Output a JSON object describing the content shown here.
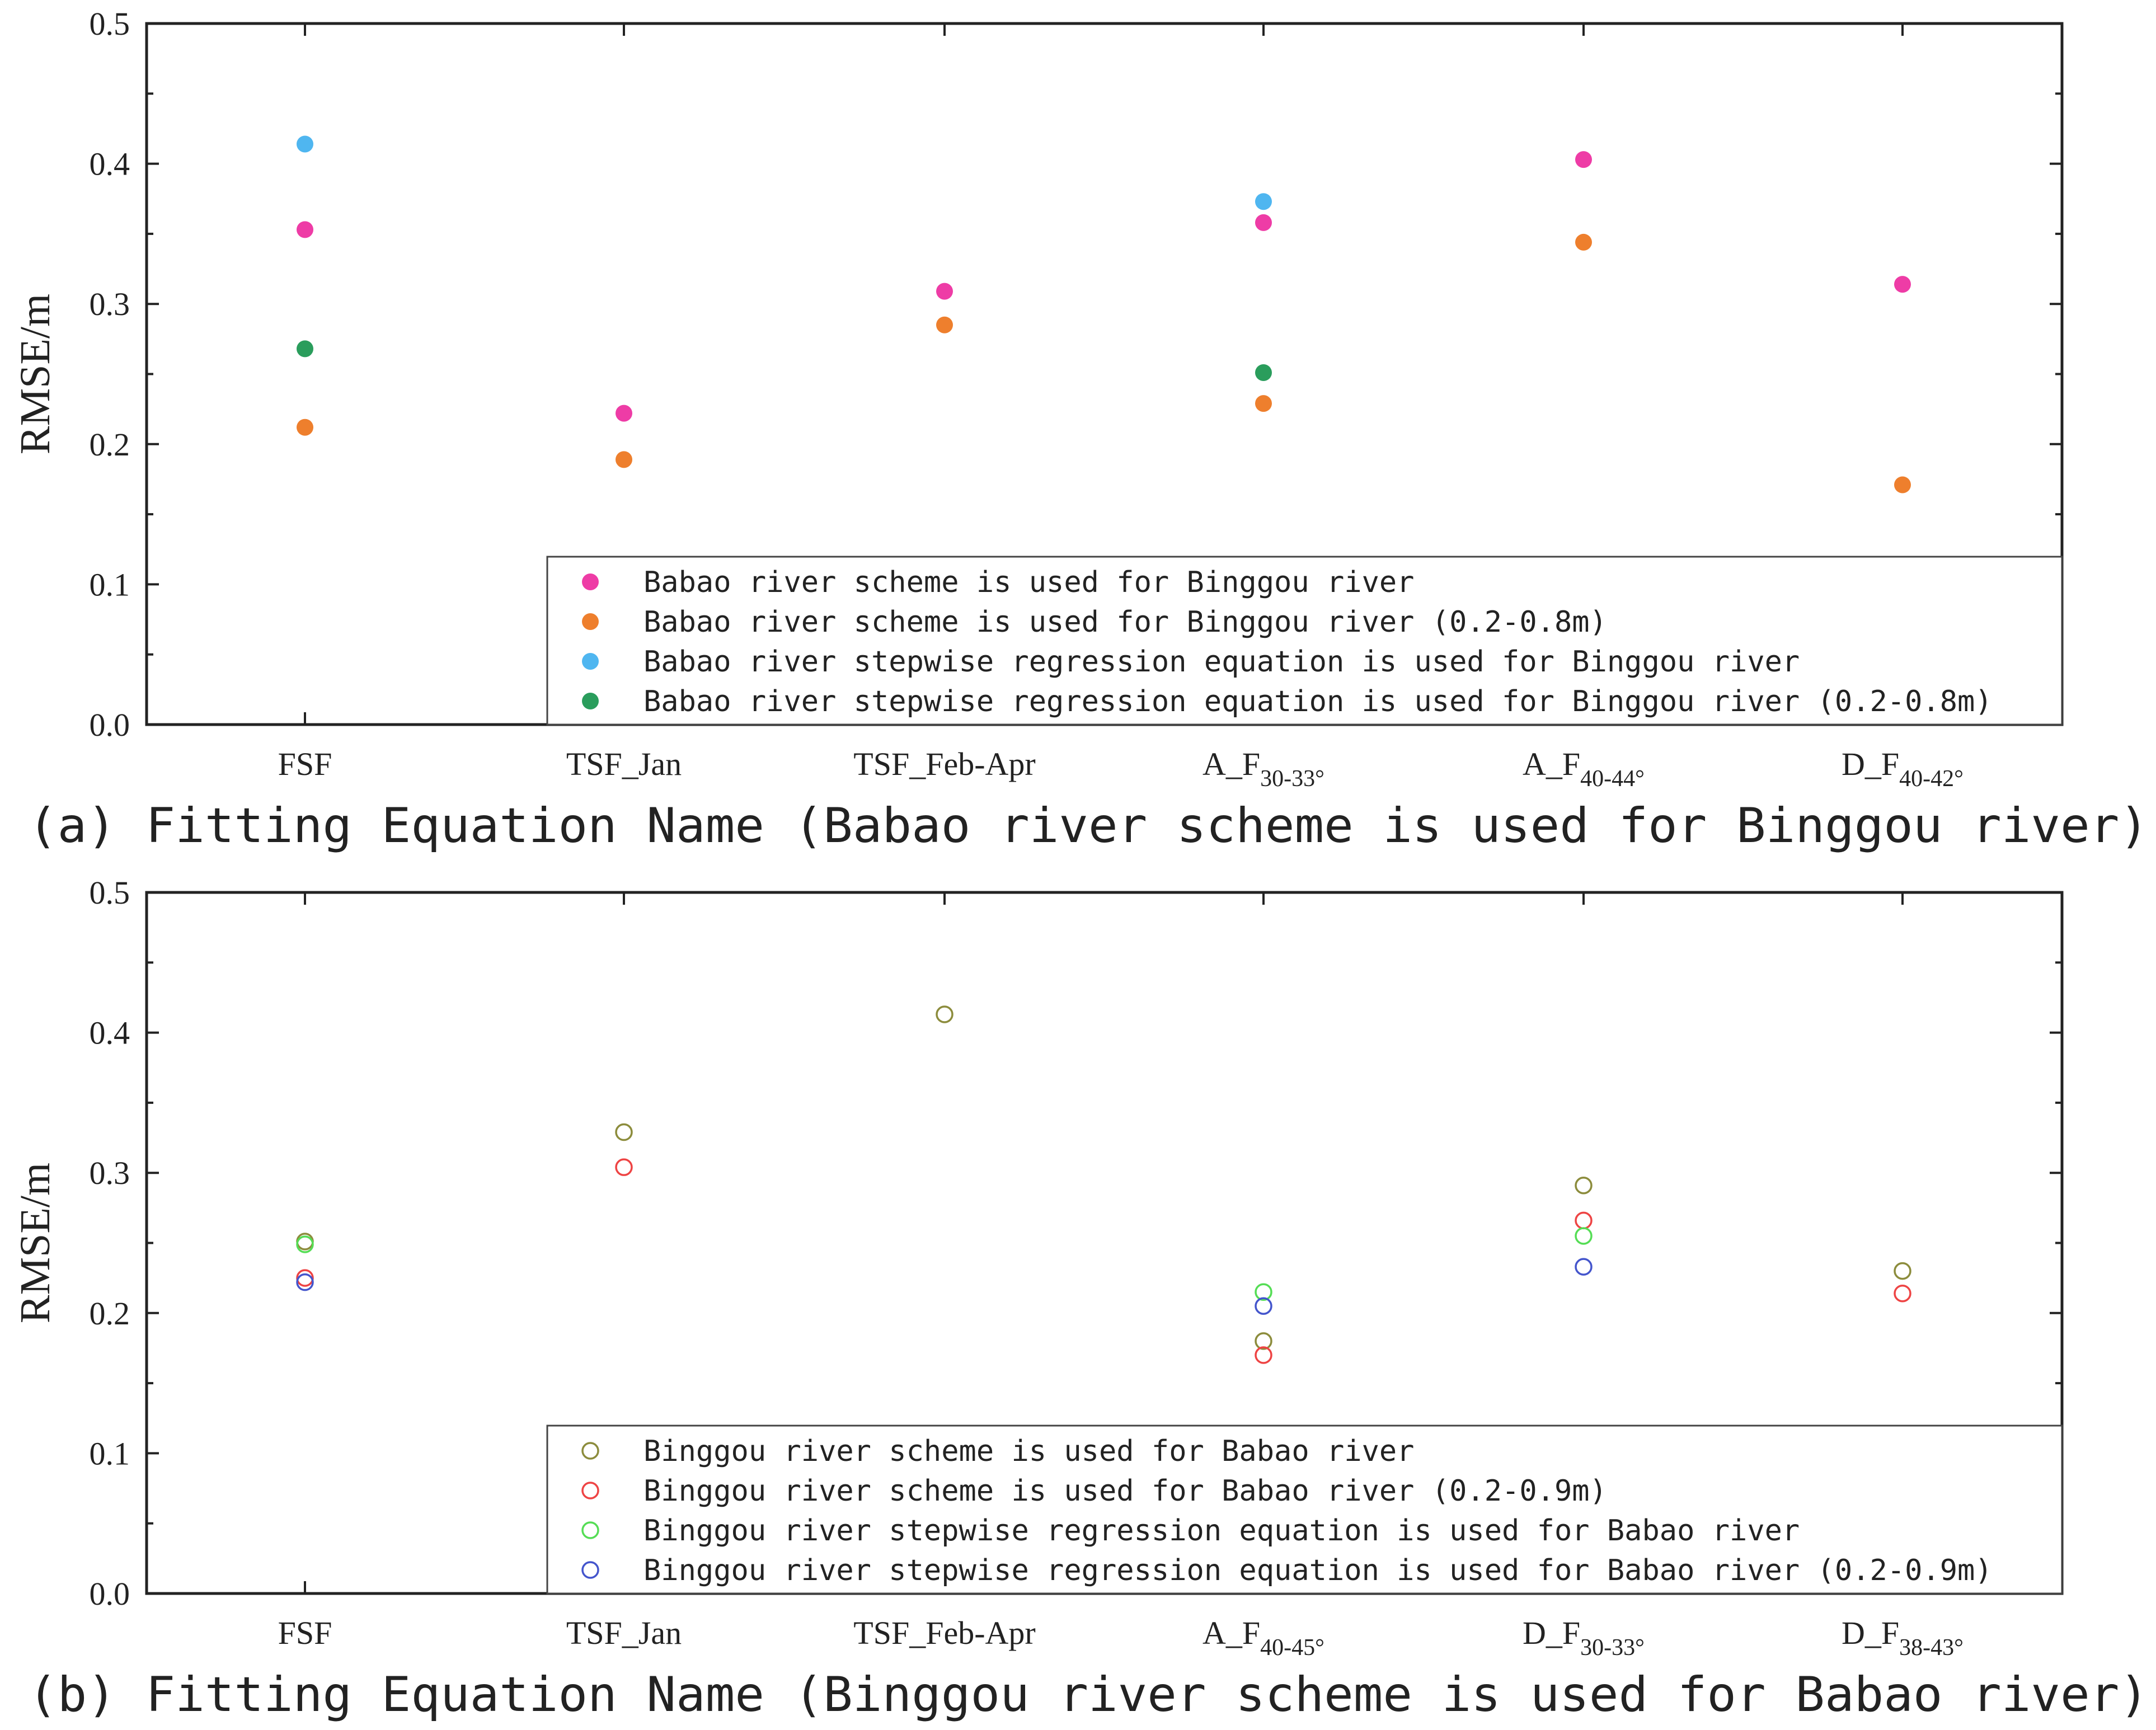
{
  "chart_data": [
    {
      "type": "scatter",
      "panel_label": "(a) Fitting Equation Name (Babao river scheme is used for Binggou river)",
      "ylabel": "RMSE/m",
      "ylim": [
        0,
        0.5
      ],
      "yticks": [
        "0.0",
        "0.1",
        "0.2",
        "0.3",
        "0.4",
        "0.5"
      ],
      "categories": [
        {
          "base": "FSF",
          "sub": ""
        },
        {
          "base": "TSF_Jan",
          "sub": ""
        },
        {
          "base": "TSF_Feb-Apr",
          "sub": ""
        },
        {
          "base": "A_F",
          "sub": "30-33°"
        },
        {
          "base": "A_F",
          "sub": "40-44°"
        },
        {
          "base": "D_F",
          "sub": "40-42°"
        }
      ],
      "marker": "filled",
      "legend_position": "bottom-right",
      "series": [
        {
          "name": "Babao river scheme is used for Binggou river",
          "color": "#ee3ca6",
          "values": [
            0.353,
            0.222,
            0.309,
            0.358,
            0.403,
            0.314
          ]
        },
        {
          "name": "Babao river scheme is used for Binggou river (0.2-0.8m)",
          "color": "#ee7f2d",
          "values": [
            0.212,
            0.189,
            0.285,
            0.229,
            0.344,
            0.171
          ]
        },
        {
          "name": "Babao river stepwise regression equation is used for Binggou river",
          "color": "#4fb6f0",
          "values": [
            0.414,
            null,
            null,
            0.373,
            null,
            null
          ]
        },
        {
          "name": "Babao river stepwise regression equation is used for Binggou river (0.2-0.8m)",
          "color": "#2a9d5c",
          "values": [
            0.268,
            null,
            null,
            0.251,
            null,
            null
          ]
        }
      ]
    },
    {
      "type": "scatter",
      "panel_label": "(b) Fitting Equation Name (Binggou river scheme is used for Babao river)",
      "ylabel": "RMSE/m",
      "ylim": [
        0,
        0.5
      ],
      "yticks": [
        "0.0",
        "0.1",
        "0.2",
        "0.3",
        "0.4",
        "0.5"
      ],
      "categories": [
        {
          "base": "FSF",
          "sub": ""
        },
        {
          "base": "TSF_Jan",
          "sub": ""
        },
        {
          "base": "TSF_Feb-Apr",
          "sub": ""
        },
        {
          "base": "A_F",
          "sub": "40-45°"
        },
        {
          "base": "D_F",
          "sub": "30-33°"
        },
        {
          "base": "D_F",
          "sub": "38-43°"
        }
      ],
      "marker": "hollow",
      "legend_position": "bottom-right",
      "series": [
        {
          "name": "Binggou river scheme is used for Babao river",
          "color": "#8c8c3c",
          "values": [
            0.251,
            0.329,
            0.413,
            0.18,
            0.291,
            0.23
          ]
        },
        {
          "name": "Binggou river scheme is used for Babao river (0.2-0.9m)",
          "color": "#ee4444",
          "values": [
            0.225,
            0.304,
            null,
            0.17,
            0.266,
            0.214
          ]
        },
        {
          "name": "Binggou river stepwise regression equation is used for Babao river",
          "color": "#55dd55",
          "values": [
            0.249,
            null,
            null,
            0.215,
            0.255,
            null
          ]
        },
        {
          "name": "Binggou river stepwise regression equation is used for Babao river (0.2-0.9m)",
          "color": "#4455cc",
          "values": [
            0.222,
            null,
            null,
            0.205,
            0.233,
            null
          ]
        }
      ]
    }
  ]
}
